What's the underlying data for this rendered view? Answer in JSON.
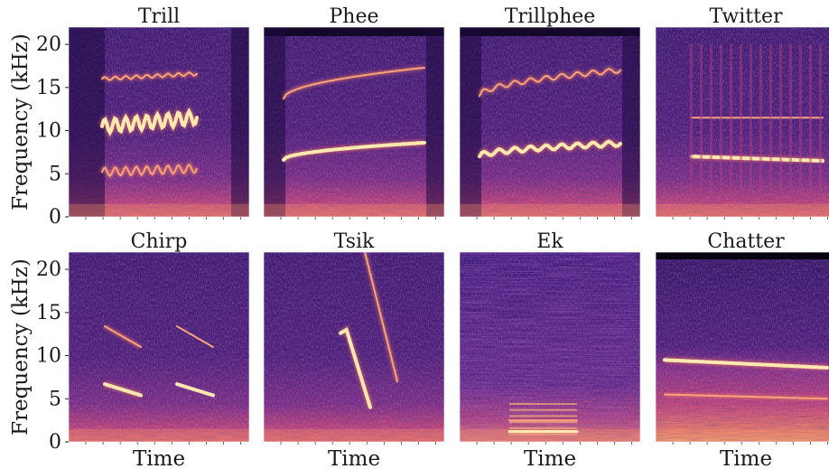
{
  "chart_data": {
    "type": "heatmap",
    "ylabel": "Frequency (kHz)",
    "xlabel": "Time",
    "ylim": [
      0,
      22
    ],
    "yticks": [
      "0",
      "5",
      "10",
      "15",
      "20"
    ],
    "colormap": "magma",
    "panels": [
      {
        "title": "Trill",
        "contours": [
          {
            "freq_khz": [
              10.5,
              11.5
            ],
            "osc": 0.8
          },
          {
            "freq_khz": [
              5.2,
              5.6
            ],
            "osc": 0.5
          },
          {
            "freq_khz": [
              16.0,
              16.6
            ],
            "osc": 0.2
          }
        ]
      },
      {
        "title": "Phee",
        "contours": [
          {
            "freq_khz": [
              6.6,
              8.6
            ],
            "osc": 0
          },
          {
            "freq_khz": [
              13.7,
              17.3
            ],
            "osc": 0
          }
        ]
      },
      {
        "title": "Trillphee",
        "contours": [
          {
            "freq_khz": [
              7.0,
              8.5
            ],
            "osc": 0.3
          },
          {
            "freq_khz": [
              14.0,
              17.0
            ],
            "osc": 0.3
          }
        ]
      },
      {
        "title": "Twitter",
        "contours": [
          {
            "freq_khz": [
              7.0,
              6.5
            ],
            "osc": 0
          },
          {
            "freq_khz": [
              11.5,
              11.5
            ],
            "osc": 0
          }
        ]
      },
      {
        "title": "Chirp",
        "contours": [
          {
            "freq_khz": [
              6.7,
              5.4
            ],
            "osc": 0
          },
          {
            "freq_khz": [
              13.4,
              11.0
            ],
            "osc": 0
          }
        ]
      },
      {
        "title": "Tsik",
        "contours": [
          {
            "freq_khz": [
              13.0,
              4.0
            ],
            "osc": 0
          },
          {
            "freq_khz": [
              22.0,
              7.0
            ],
            "osc": 0
          }
        ]
      },
      {
        "title": "Ek",
        "contours": [
          {
            "freq_khz": [
              1.2,
              1.2
            ],
            "osc": 0
          },
          {
            "freq_khz": [
              2.5,
              2.5
            ],
            "osc": 0
          }
        ]
      },
      {
        "title": "Chatter",
        "contours": [
          {
            "freq_khz": [
              9.5,
              8.6
            ],
            "osc": 0
          },
          {
            "freq_khz": [
              5.5,
              5.0
            ],
            "osc": 0
          }
        ]
      }
    ]
  },
  "colors": {
    "background_dark": "#2c1160",
    "mid": "#7a2a8a",
    "bright": "#fcfdbf",
    "band": "#e35a60"
  }
}
